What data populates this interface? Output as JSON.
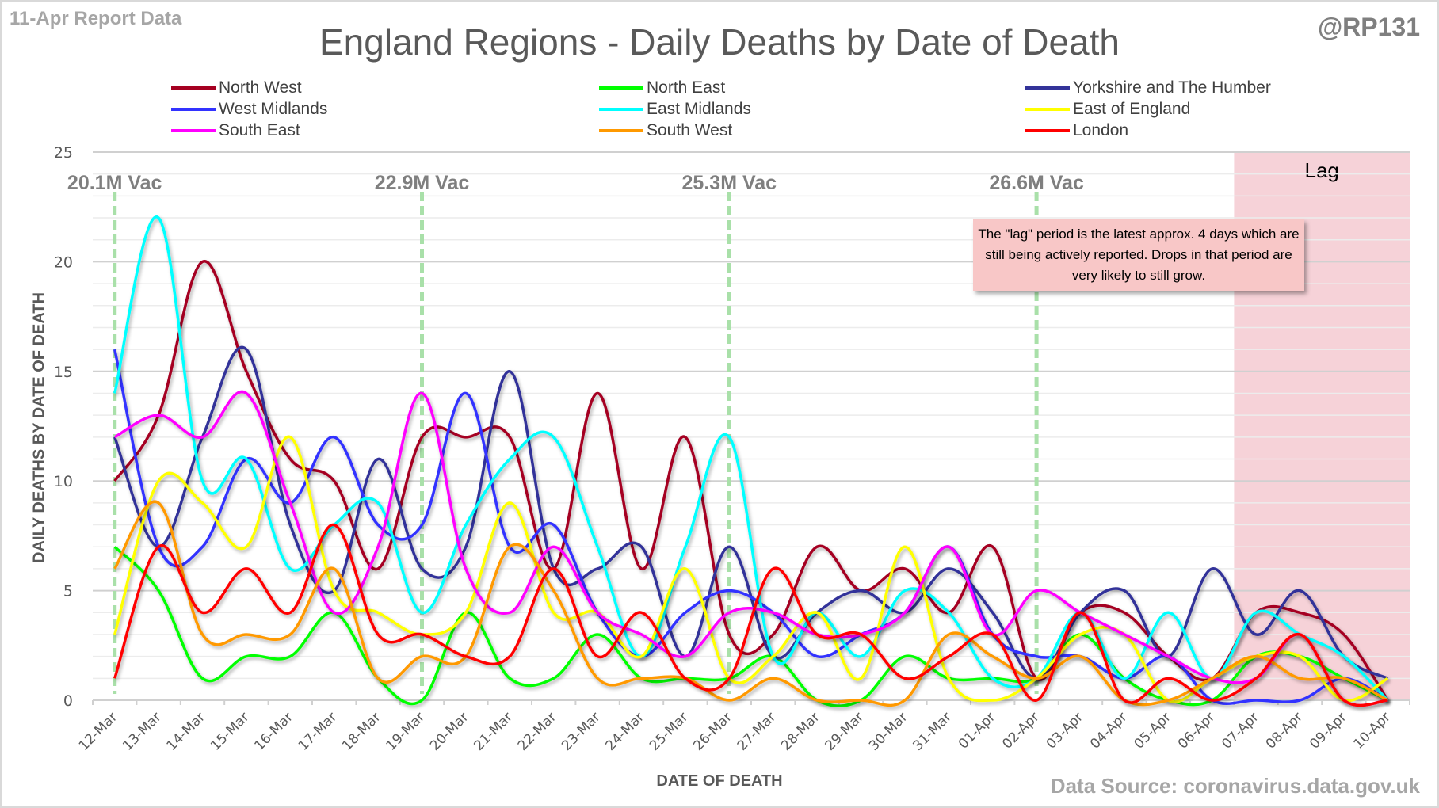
{
  "header": {
    "report_label": "11-Apr Report Data",
    "title": "England Regions - Daily Deaths by Date of Death",
    "handle": "@RP131",
    "source": "Data Source: coronavirus.data.gov.uk"
  },
  "annotation": {
    "lag_label": "Lag",
    "note": "The \"lag\" period is the latest approx. 4 days which are still being actively reported. Drops in that period are very likely to still grow.",
    "lag_start": "07-Apr",
    "lag_end": "10-Apr"
  },
  "vaccination_markers": [
    {
      "date": "12-Mar",
      "label": "20.1M Vac"
    },
    {
      "date": "19-Mar",
      "label": "22.9M Vac"
    },
    {
      "date": "26-Mar",
      "label": "25.3M Vac"
    },
    {
      "date": "02-Apr",
      "label": "26.6M Vac"
    }
  ],
  "chart_data": {
    "type": "line",
    "title": "England Regions - Daily Deaths by Date of Death",
    "xlabel": "DATE OF DEATH",
    "ylabel": "DAILY DEATHS BY DATE OF DEATH",
    "ylim": [
      0,
      25
    ],
    "yticks": [
      0,
      5,
      10,
      15,
      20,
      25
    ],
    "grid": true,
    "legend": "top",
    "categories": [
      "12-Mar",
      "13-Mar",
      "14-Mar",
      "15-Mar",
      "16-Mar",
      "17-Mar",
      "18-Mar",
      "19-Mar",
      "20-Mar",
      "21-Mar",
      "22-Mar",
      "23-Mar",
      "24-Mar",
      "25-Mar",
      "26-Mar",
      "27-Mar",
      "28-Mar",
      "29-Mar",
      "30-Mar",
      "31-Mar",
      "01-Apr",
      "02-Apr",
      "03-Apr",
      "04-Apr",
      "05-Apr",
      "06-Apr",
      "07-Apr",
      "08-Apr",
      "09-Apr",
      "10-Apr"
    ],
    "series": [
      {
        "name": "North West",
        "color": "#a50021",
        "values": [
          10,
          13,
          20,
          15,
          11,
          10,
          6,
          12,
          12,
          12,
          6,
          14,
          6,
          12,
          3,
          3,
          7,
          5,
          6,
          4,
          7,
          1,
          4,
          4,
          2,
          1,
          4,
          4,
          3,
          0
        ]
      },
      {
        "name": "North East",
        "color": "#00ff00",
        "values": [
          7,
          5,
          1,
          2,
          2,
          4,
          1,
          0,
          4,
          1,
          1,
          3,
          1,
          1,
          1,
          2,
          0,
          0,
          2,
          1,
          1,
          1,
          3,
          1,
          0,
          0,
          2,
          2,
          1,
          0
        ]
      },
      {
        "name": "Yorkshire and The Humber",
        "color": "#333399",
        "values": [
          12,
          7,
          12,
          16,
          8,
          5,
          11,
          6,
          7,
          15,
          6,
          6,
          7,
          2,
          7,
          2,
          4,
          5,
          4,
          6,
          4,
          1,
          4,
          5,
          2,
          6,
          3,
          5,
          2,
          1
        ]
      },
      {
        "name": "West Midlands",
        "color": "#3333ff",
        "values": [
          16,
          7,
          7,
          11,
          9,
          12,
          8,
          8,
          14,
          7,
          8,
          4,
          2,
          4,
          5,
          4,
          2,
          3,
          4,
          7,
          3,
          2,
          2,
          1,
          2,
          0,
          0,
          0,
          1,
          0
        ]
      },
      {
        "name": "East Midlands",
        "color": "#00ffff",
        "values": [
          14,
          22,
          10,
          11,
          6,
          8,
          9,
          4,
          8,
          11,
          12,
          7,
          2,
          7,
          12,
          2,
          4,
          2,
          5,
          4,
          1,
          1,
          4,
          1,
          4,
          1,
          4,
          3,
          2,
          0
        ]
      },
      {
        "name": "East of England",
        "color": "#ffff00",
        "values": [
          3,
          10,
          9,
          7,
          12,
          5,
          4,
          3,
          4,
          9,
          4,
          4,
          2,
          6,
          1,
          2,
          4,
          1,
          7,
          1,
          0,
          1,
          3,
          3,
          0,
          1,
          2,
          2,
          0,
          1
        ]
      },
      {
        "name": "South East",
        "color": "#ff00ff",
        "values": [
          12,
          13,
          12,
          14,
          9,
          4,
          7,
          14,
          6,
          4,
          7,
          4,
          3,
          2,
          4,
          4,
          3,
          3,
          4,
          7,
          3,
          5,
          4,
          3,
          2,
          1,
          1,
          3,
          0,
          0
        ]
      },
      {
        "name": "South West",
        "color": "#ff9900",
        "values": [
          6,
          9,
          3,
          3,
          3,
          6,
          1,
          2,
          2,
          7,
          5,
          1,
          1,
          1,
          0,
          1,
          0,
          0,
          0,
          3,
          2,
          1,
          2,
          0,
          0,
          1,
          2,
          1,
          1,
          0
        ]
      },
      {
        "name": "London",
        "color": "#ff0000",
        "values": [
          1,
          7,
          4,
          6,
          4,
          8,
          3,
          3,
          2,
          2,
          6,
          2,
          4,
          1,
          1,
          6,
          3,
          3,
          1,
          2,
          3,
          0,
          4,
          0,
          1,
          0,
          1,
          3,
          0,
          0
        ]
      }
    ]
  }
}
